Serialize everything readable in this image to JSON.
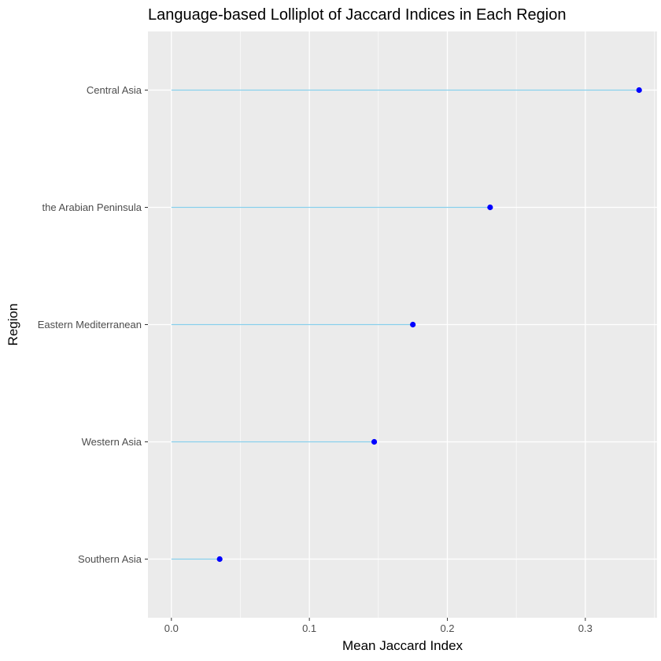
{
  "chart_data": {
    "type": "lollipop",
    "title": "Language-based Lolliplot of Jaccard Indices in Each Region",
    "xlabel": "Mean Jaccard Index",
    "ylabel": "Region",
    "xlim": [
      -0.017,
      0.352
    ],
    "x_ticks": [
      0.0,
      0.1,
      0.2,
      0.3
    ],
    "x_tick_labels": [
      "0.0",
      "0.1",
      "0.2",
      "0.3"
    ],
    "categories": [
      "Southern Asia",
      "Western Asia",
      "Eastern Mediterranean",
      "the Arabian Peninsula",
      "Central Asia"
    ],
    "values": [
      0.035,
      0.147,
      0.175,
      0.231,
      0.339
    ],
    "grid": true,
    "colors": {
      "panel_background": "#ebebeb",
      "gridline": "#ffffff",
      "stem": "#87ceeb",
      "point": "#0000ff",
      "tick": "#333333"
    }
  }
}
